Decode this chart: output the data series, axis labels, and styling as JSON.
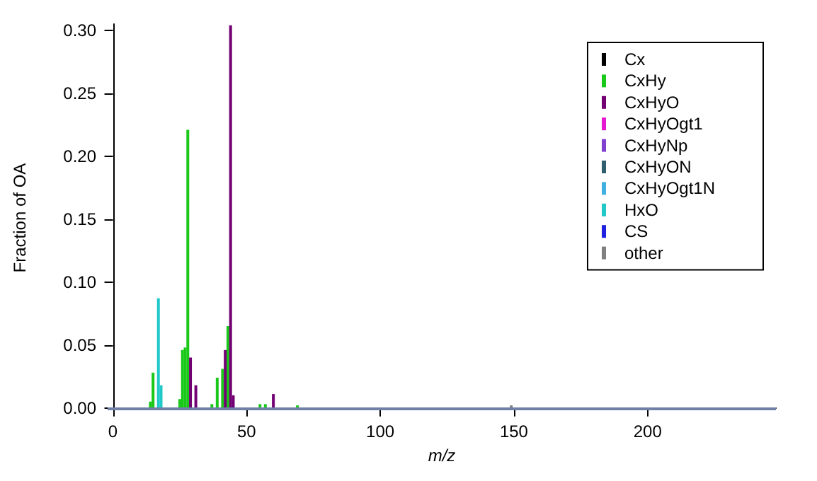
{
  "chart_data": {
    "type": "bar",
    "xlabel": "m/z",
    "ylabel": "Fraction of OA",
    "xlim": [
      -2,
      248
    ],
    "xticks": [
      0,
      50,
      100,
      150,
      200
    ],
    "ylim": [
      -0.003,
      0.305
    ],
    "yticks": [
      {
        "value": 0,
        "label": "0.00"
      },
      {
        "value": 0.05,
        "label": "0.05"
      },
      {
        "value": 0.1,
        "label": "0.10"
      },
      {
        "value": 0.15,
        "label": "0.15"
      },
      {
        "value": 0.2,
        "label": "0.20"
      },
      {
        "value": 0.25,
        "label": "0.25"
      },
      {
        "value": 0.3,
        "label": "0.30"
      }
    ],
    "legend": "top right",
    "grid": false,
    "ref_lines": [
      {
        "axis": "y",
        "value": 0,
        "color": "#6f7fa8"
      }
    ],
    "series": [
      {
        "name": "Cx",
        "color": "#000000"
      },
      {
        "name": "CxHy",
        "color": "#19c819",
        "x": [
          14,
          15,
          25,
          26,
          27,
          28,
          37,
          39,
          41,
          43,
          55,
          57,
          69
        ],
        "values": [
          0.005,
          0.028,
          0.007,
          0.046,
          0.048,
          0.221,
          0.003,
          0.024,
          0.031,
          0.065,
          0.003,
          0.003,
          0.002
        ]
      },
      {
        "name": "CxHyO",
        "color": "#730073",
        "x": [
          29,
          31,
          42,
          44,
          45,
          60
        ],
        "values": [
          0.04,
          0.018,
          0.046,
          0.304,
          0.01,
          0.011
        ]
      },
      {
        "name": "CxHyOgt1",
        "color": "#e619d2"
      },
      {
        "name": "CxHyNp",
        "color": "#8040d0"
      },
      {
        "name": "CxHyON",
        "color": "#2f5f6f"
      },
      {
        "name": "CxHyOgt1N",
        "color": "#40b0e0"
      },
      {
        "name": "HxO",
        "color": "#20c8c8",
        "x": [
          17,
          18
        ],
        "values": [
          0.087,
          0.018
        ]
      },
      {
        "name": "CS",
        "color": "#2020e0"
      },
      {
        "name": "other",
        "color": "#808080",
        "x": [
          149
        ],
        "values": [
          0.002
        ]
      }
    ]
  }
}
